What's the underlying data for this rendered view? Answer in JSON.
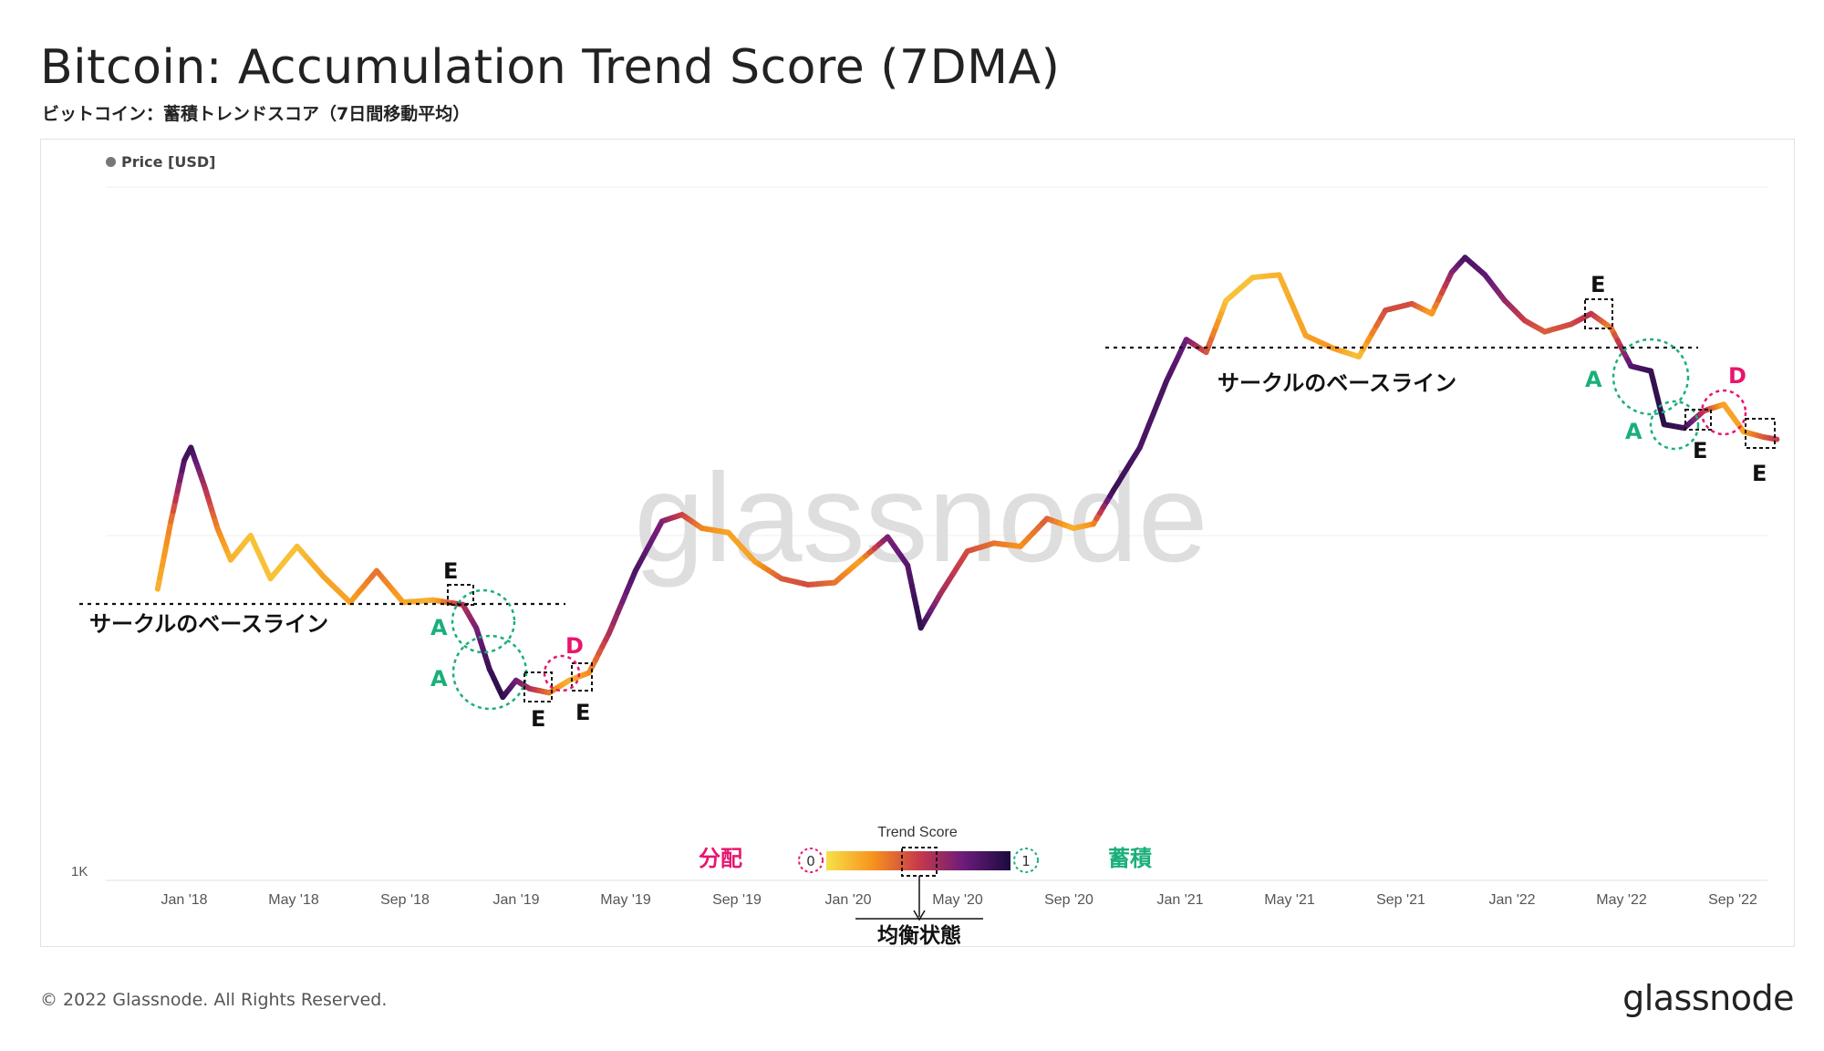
{
  "header": {
    "title": "Bitcoin: Accumulation Trend Score (7DMA)",
    "subtitle": "ビットコイン：蓄積トレンドスコア（7日間移動平均）"
  },
  "legend": {
    "series_label": "Price [USD]"
  },
  "watermark": "glassnode",
  "footer": {
    "copyright": "© 2022 Glassnode. All Rights Reserved.",
    "brand": "glassnode"
  },
  "colors": {
    "score_low": "#f7e04a",
    "score_mid_low": "#f7941d",
    "score_mid": "#c83a4a",
    "score_mid_high": "#6a1b7a",
    "score_high": "#1a0b3d",
    "accumulation_marker": "#1aaf7a",
    "distribution_marker": "#e8156e"
  },
  "chart_data": {
    "type": "line",
    "title": "Bitcoin: Accumulation Trend Score (7DMA)",
    "series_name": "Price [USD]",
    "y_scale": "log",
    "y_tick_labels": [
      "1K"
    ],
    "x_tick_labels": [
      "Jan '18",
      "May '18",
      "Sep '18",
      "Jan '19",
      "May '19",
      "Sep '19",
      "Jan '20",
      "May '20",
      "Sep '20",
      "Jan '21",
      "May '21",
      "Sep '21",
      "Jan '22",
      "May '22",
      "Sep '22"
    ],
    "color_by": "Trend Score",
    "points": [
      {
        "t": 2017.92,
        "y": 7000,
        "s": 0.15
      },
      {
        "t": 2017.96,
        "y": 11000,
        "s": 0.3
      },
      {
        "t": 2018.0,
        "y": 16500,
        "s": 0.85
      },
      {
        "t": 2018.02,
        "y": 18000,
        "s": 0.9
      },
      {
        "t": 2018.06,
        "y": 14000,
        "s": 0.6
      },
      {
        "t": 2018.1,
        "y": 10500,
        "s": 0.3
      },
      {
        "t": 2018.14,
        "y": 8500,
        "s": 0.15
      },
      {
        "t": 2018.2,
        "y": 10000,
        "s": 0.1
      },
      {
        "t": 2018.26,
        "y": 7500,
        "s": 0.1
      },
      {
        "t": 2018.34,
        "y": 9300,
        "s": 0.1
      },
      {
        "t": 2018.42,
        "y": 7600,
        "s": 0.2
      },
      {
        "t": 2018.5,
        "y": 6400,
        "s": 0.2
      },
      {
        "t": 2018.58,
        "y": 7900,
        "s": 0.35
      },
      {
        "t": 2018.66,
        "y": 6400,
        "s": 0.2
      },
      {
        "t": 2018.75,
        "y": 6500,
        "s": 0.15
      },
      {
        "t": 2018.84,
        "y": 6300,
        "s": 0.55
      },
      {
        "t": 2018.88,
        "y": 5400,
        "s": 0.7
      },
      {
        "t": 2018.92,
        "y": 4100,
        "s": 0.9
      },
      {
        "t": 2018.96,
        "y": 3400,
        "s": 0.95
      },
      {
        "t": 2019.0,
        "y": 3800,
        "s": 0.75
      },
      {
        "t": 2019.04,
        "y": 3600,
        "s": 0.6
      },
      {
        "t": 2019.1,
        "y": 3500,
        "s": 0.35
      },
      {
        "t": 2019.16,
        "y": 3800,
        "s": 0.15
      },
      {
        "t": 2019.22,
        "y": 4000,
        "s": 0.25
      },
      {
        "t": 2019.28,
        "y": 5200,
        "s": 0.55
      },
      {
        "t": 2019.36,
        "y": 7900,
        "s": 0.85
      },
      {
        "t": 2019.44,
        "y": 11000,
        "s": 0.7
      },
      {
        "t": 2019.5,
        "y": 11500,
        "s": 0.5
      },
      {
        "t": 2019.56,
        "y": 10500,
        "s": 0.3
      },
      {
        "t": 2019.64,
        "y": 10200,
        "s": 0.2
      },
      {
        "t": 2019.72,
        "y": 8400,
        "s": 0.2
      },
      {
        "t": 2019.8,
        "y": 7500,
        "s": 0.4
      },
      {
        "t": 2019.88,
        "y": 7200,
        "s": 0.45
      },
      {
        "t": 2019.96,
        "y": 7300,
        "s": 0.35
      },
      {
        "t": 2020.04,
        "y": 8500,
        "s": 0.2
      },
      {
        "t": 2020.12,
        "y": 9900,
        "s": 0.7
      },
      {
        "t": 2020.18,
        "y": 8200,
        "s": 0.8
      },
      {
        "t": 2020.22,
        "y": 5400,
        "s": 0.95
      },
      {
        "t": 2020.28,
        "y": 6800,
        "s": 0.6
      },
      {
        "t": 2020.36,
        "y": 9000,
        "s": 0.45
      },
      {
        "t": 2020.44,
        "y": 9500,
        "s": 0.35
      },
      {
        "t": 2020.52,
        "y": 9300,
        "s": 0.25
      },
      {
        "t": 2020.6,
        "y": 11200,
        "s": 0.4
      },
      {
        "t": 2020.68,
        "y": 10500,
        "s": 0.15
      },
      {
        "t": 2020.74,
        "y": 10800,
        "s": 0.25
      },
      {
        "t": 2020.8,
        "y": 13500,
        "s": 0.9
      },
      {
        "t": 2020.88,
        "y": 18000,
        "s": 0.85
      },
      {
        "t": 2020.96,
        "y": 28000,
        "s": 0.85
      },
      {
        "t": 2021.02,
        "y": 37000,
        "s": 0.75
      },
      {
        "t": 2021.08,
        "y": 34000,
        "s": 0.45
      },
      {
        "t": 2021.14,
        "y": 48000,
        "s": 0.1
      },
      {
        "t": 2021.22,
        "y": 56000,
        "s": 0.1
      },
      {
        "t": 2021.3,
        "y": 57000,
        "s": 0.15
      },
      {
        "t": 2021.38,
        "y": 38000,
        "s": 0.2
      },
      {
        "t": 2021.46,
        "y": 35000,
        "s": 0.25
      },
      {
        "t": 2021.54,
        "y": 33000,
        "s": 0.1
      },
      {
        "t": 2021.62,
        "y": 45000,
        "s": 0.45
      },
      {
        "t": 2021.7,
        "y": 47000,
        "s": 0.45
      },
      {
        "t": 2021.76,
        "y": 44000,
        "s": 0.2
      },
      {
        "t": 2021.82,
        "y": 58000,
        "s": 0.65
      },
      {
        "t": 2021.86,
        "y": 64000,
        "s": 0.85
      },
      {
        "t": 2021.92,
        "y": 57000,
        "s": 0.8
      },
      {
        "t": 2021.98,
        "y": 48000,
        "s": 0.65
      },
      {
        "t": 2022.04,
        "y": 42000,
        "s": 0.5
      },
      {
        "t": 2022.1,
        "y": 39000,
        "s": 0.4
      },
      {
        "t": 2022.18,
        "y": 41000,
        "s": 0.45
      },
      {
        "t": 2022.24,
        "y": 44000,
        "s": 0.55
      },
      {
        "t": 2022.3,
        "y": 40000,
        "s": 0.3
      },
      {
        "t": 2022.36,
        "y": 31000,
        "s": 0.8
      },
      {
        "t": 2022.42,
        "y": 30000,
        "s": 0.9
      },
      {
        "t": 2022.46,
        "y": 21000,
        "s": 0.95
      },
      {
        "t": 2022.52,
        "y": 20500,
        "s": 0.9
      },
      {
        "t": 2022.58,
        "y": 23000,
        "s": 0.55
      },
      {
        "t": 2022.64,
        "y": 24000,
        "s": 0.2
      },
      {
        "t": 2022.7,
        "y": 20000,
        "s": 0.2
      },
      {
        "t": 2022.76,
        "y": 19300,
        "s": 0.4
      },
      {
        "t": 2022.8,
        "y": 19000,
        "s": 0.5
      }
    ]
  },
  "color_legend": {
    "title": "Trend Score",
    "low_value": "0",
    "high_value": "1",
    "low_label": "分配",
    "high_label": "蓄積",
    "equilibrium_label": "均衡状態"
  },
  "annotations": {
    "baseline_label": "サークルのベースライン",
    "accumulation_letter": "A",
    "exhaustion_letter": "E",
    "distribution_letter": "D"
  }
}
